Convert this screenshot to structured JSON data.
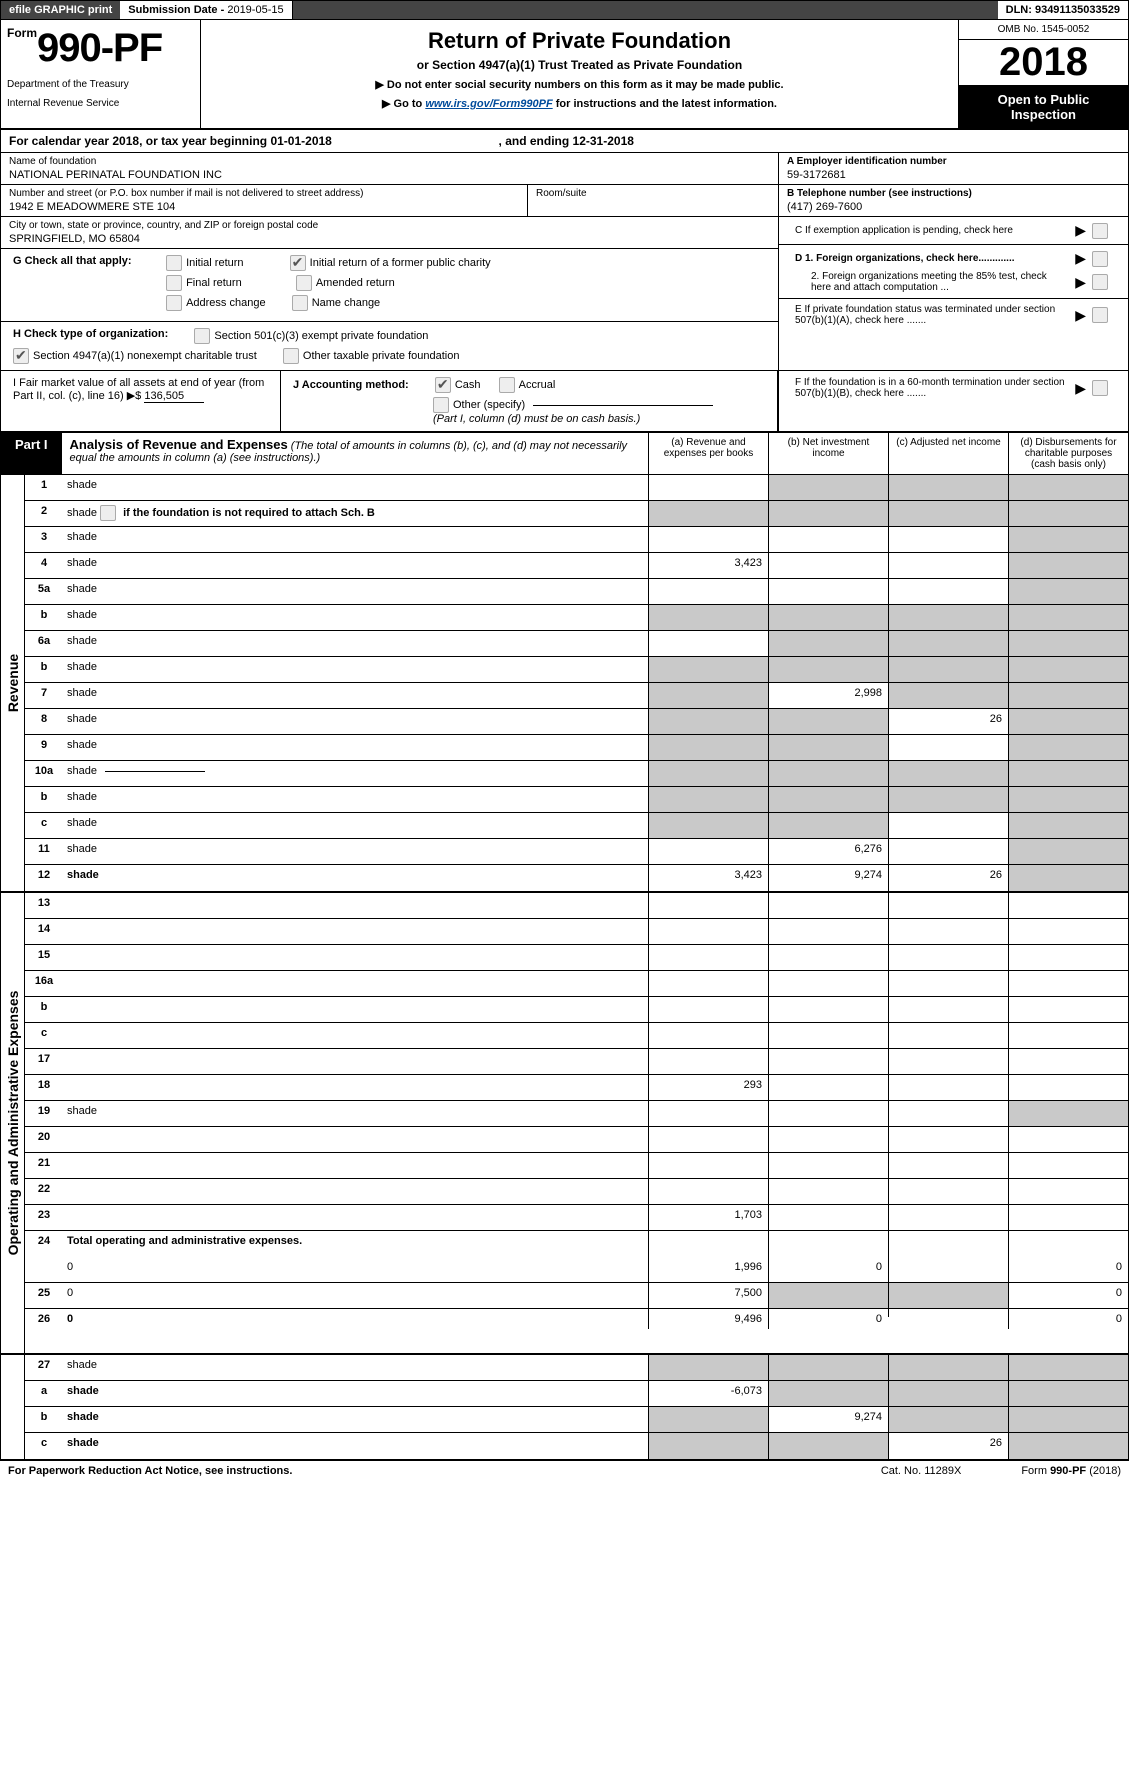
{
  "topbar": {
    "efile": "efile GRAPHIC print",
    "submission_label": "Submission Date - ",
    "submission_date": "2019-05-15",
    "dln_label": "DLN: ",
    "dln": "93491135033529"
  },
  "header": {
    "form_prefix": "Form",
    "form_number": "990-PF",
    "dept1": "Department of the Treasury",
    "dept2": "Internal Revenue Service",
    "title": "Return of Private Foundation",
    "subtitle": "or Section 4947(a)(1) Trust Treated as Private Foundation",
    "note1": "▶ Do not enter social security numbers on this form as it may be made public.",
    "note2_pre": "▶ Go to ",
    "note2_link": "www.irs.gov/Form990PF",
    "note2_post": " for instructions and the latest information.",
    "omb": "OMB No. 1545-0052",
    "year": "2018",
    "inspect": "Open to Public Inspection"
  },
  "calyear": {
    "text_pre": "For calendar year 2018, or tax year beginning ",
    "begin": "01-01-2018",
    "text_mid": " , and ending ",
    "end": "12-31-2018"
  },
  "id": {
    "name_label": "Name of foundation",
    "name_val": "NATIONAL PERINATAL FOUNDATION INC",
    "street_label": "Number and street (or P.O. box number if mail is not delivered to street address)",
    "street_val": "1942 E MEADOWMERE STE 104",
    "room_label": "Room/suite",
    "city_label": "City or town, state or province, country, and ZIP or foreign postal code",
    "city_val": "SPRINGFIELD, MO  65804",
    "A_label": "A Employer identification number",
    "A_val": "59-3172681",
    "B_label": "B Telephone number (see instructions)",
    "B_val": "(417) 269-7600",
    "C_label": "C  If exemption application is pending, check here",
    "D1": "D 1. Foreign organizations, check here.............",
    "D2": "2. Foreign organizations meeting the 85% test, check here and attach computation ...",
    "E": "E   If private foundation status was terminated under section 507(b)(1)(A), check here .......",
    "F": "F   If the foundation is in a 60-month termination under section 507(b)(1)(B), check here ......."
  },
  "G": {
    "label": "G Check all that apply:",
    "opt1": "Initial return",
    "opt2": "Initial return of a former public charity",
    "opt3": "Final return",
    "opt4": "Amended return",
    "opt5": "Address change",
    "opt6": "Name change"
  },
  "H": {
    "label": "H Check type of organization:",
    "opt1": "Section 501(c)(3) exempt private foundation",
    "opt2": "Section 4947(a)(1) nonexempt charitable trust",
    "opt3": "Other taxable private foundation"
  },
  "I": {
    "label": "I Fair market value of all assets at end of year (from Part II, col. (c), line 16) ▶$",
    "val": "136,505"
  },
  "J": {
    "label": "J Accounting method:",
    "cash": "Cash",
    "accrual": "Accrual",
    "other": "Other (specify)",
    "note": "(Part I, column (d) must be on cash basis.)"
  },
  "part1": {
    "badge": "Part I",
    "title": "Analysis of Revenue and Expenses",
    "title_note": " (The total of amounts in columns (b), (c), and (d) may not necessarily equal the amounts in column (a) (see instructions).)",
    "col_a": "(a)    Revenue and expenses per books",
    "col_b": "(b)    Net investment income",
    "col_c": "(c)    Adjusted net income",
    "col_d": "(d)    Disbursements for charitable purposes (cash basis only)"
  },
  "revenue_label": "Revenue",
  "expenses_label": "Operating and Administrative Expenses",
  "rows": {
    "r1": {
      "n": "1",
      "d": "shade",
      "a": "",
      "b": "shade",
      "c": "shade"
    },
    "r2": {
      "n": "2",
      "d": "shade",
      "d2": " if the foundation is not required to attach Sch. B",
      "a": "shade",
      "b": "shade",
      "c": "shade"
    },
    "r3": {
      "n": "3",
      "d": "shade",
      "a": "",
      "b": "",
      "c": ""
    },
    "r4": {
      "n": "4",
      "d": "shade",
      "a": "3,423",
      "b": "",
      "c": ""
    },
    "r5a": {
      "n": "5a",
      "d": "shade",
      "a": "",
      "b": "",
      "c": ""
    },
    "r5b": {
      "n": "b",
      "d": "shade",
      "a": "shade",
      "b": "shade",
      "c": "shade"
    },
    "r6a": {
      "n": "6a",
      "d": "shade",
      "a": "",
      "b": "shade",
      "c": "shade"
    },
    "r6b": {
      "n": "b",
      "d": "shade",
      "a": "shade",
      "b": "shade",
      "c": "shade"
    },
    "r7": {
      "n": "7",
      "d": "shade",
      "a": "shade",
      "b": "2,998",
      "c": "shade"
    },
    "r8": {
      "n": "8",
      "d": "shade",
      "a": "shade",
      "b": "shade",
      "c": "26"
    },
    "r9": {
      "n": "9",
      "d": "shade",
      "a": "shade",
      "b": "shade",
      "c": ""
    },
    "r10a": {
      "n": "10a",
      "d": "shade",
      "a": "shade",
      "b": "shade",
      "c": "shade"
    },
    "r10b": {
      "n": "b",
      "d": "shade",
      "a": "shade",
      "b": "shade",
      "c": "shade"
    },
    "r10c": {
      "n": "c",
      "d": "shade",
      "a": "shade",
      "b": "shade",
      "c": ""
    },
    "r11": {
      "n": "11",
      "d": "shade",
      "a": "",
      "b": "6,276",
      "c": ""
    },
    "r12": {
      "n": "12",
      "d": "shade",
      "a": "3,423",
      "b": "9,274",
      "c": "26",
      "bold": true
    },
    "r13": {
      "n": "13",
      "d": "",
      "a": "",
      "b": "",
      "c": ""
    },
    "r14": {
      "n": "14",
      "d": "",
      "a": "",
      "b": "",
      "c": ""
    },
    "r15": {
      "n": "15",
      "d": "",
      "a": "",
      "b": "",
      "c": ""
    },
    "r16a": {
      "n": "16a",
      "d": "",
      "a": "",
      "b": "",
      "c": ""
    },
    "r16b": {
      "n": "b",
      "d": "",
      "a": "",
      "b": "",
      "c": ""
    },
    "r16c": {
      "n": "c",
      "d": "",
      "a": "",
      "b": "",
      "c": ""
    },
    "r17": {
      "n": "17",
      "d": "",
      "a": "",
      "b": "",
      "c": ""
    },
    "r18": {
      "n": "18",
      "d": "",
      "a": "293",
      "b": "",
      "c": ""
    },
    "r19": {
      "n": "19",
      "d": "shade",
      "a": "",
      "b": "",
      "c": ""
    },
    "r20": {
      "n": "20",
      "d": "",
      "a": "",
      "b": "",
      "c": ""
    },
    "r21": {
      "n": "21",
      "d": "",
      "a": "",
      "b": "",
      "c": ""
    },
    "r22": {
      "n": "22",
      "d": "",
      "a": "",
      "b": "",
      "c": ""
    },
    "r23": {
      "n": "23",
      "d": "",
      "a": "1,703",
      "b": "",
      "c": ""
    },
    "r24": {
      "n": "24",
      "d": "Total operating and administrative expenses.",
      "bold": true
    },
    "r24b": {
      "n": "",
      "d": "0",
      "a": "1,996",
      "b": "0",
      "c": ""
    },
    "r25": {
      "n": "25",
      "d": "0",
      "a": "7,500",
      "b": "shade",
      "c": "shade"
    },
    "r26": {
      "n": "26",
      "d": "0",
      "a": "9,496",
      "b": "0",
      "c": "",
      "bold": true
    },
    "r27": {
      "n": "27",
      "d": "shade",
      "a": "shade",
      "b": "shade",
      "c": "shade"
    },
    "r27a": {
      "n": "a",
      "d": "shade",
      "a": "-6,073",
      "b": "shade",
      "c": "shade",
      "bold": true
    },
    "r27b": {
      "n": "b",
      "d": "shade",
      "a": "shade",
      "b": "9,274",
      "c": "shade",
      "bold": true
    },
    "r27c": {
      "n": "c",
      "d": "shade",
      "a": "shade",
      "b": "shade",
      "c": "26",
      "bold": true
    }
  },
  "footer": {
    "left": "For Paperwork Reduction Act Notice, see instructions.",
    "mid": "Cat. No. 11289X",
    "right_pre": "Form ",
    "right_form": "990-PF",
    "right_year": " (2018)"
  }
}
